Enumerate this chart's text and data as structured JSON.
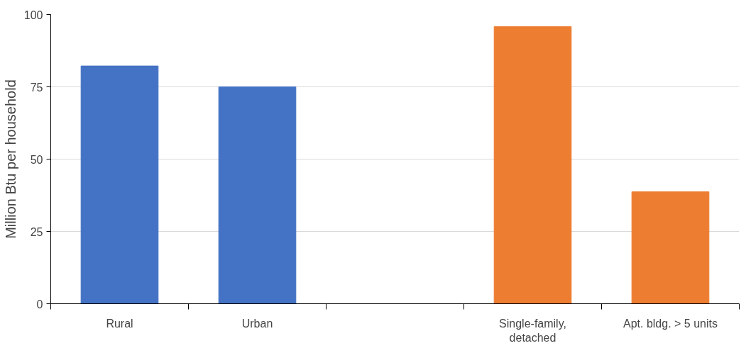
{
  "chart_data": {
    "type": "bar",
    "ylabel": "Million Btu per household",
    "categories": [
      "Rural",
      "Urban",
      null,
      "Single-family, detached",
      "Apt. bldg. > 5 units"
    ],
    "values": [
      82.2,
      75,
      null,
      95.8,
      38.7
    ],
    "colors": [
      "#4472c4",
      "#4472c4",
      "#4472c4",
      "#ed7d31",
      "#ed7d31"
    ],
    "ylim": [
      0,
      100
    ],
    "yticks": [
      0,
      25,
      50,
      75,
      100
    ],
    "grid": "y"
  }
}
